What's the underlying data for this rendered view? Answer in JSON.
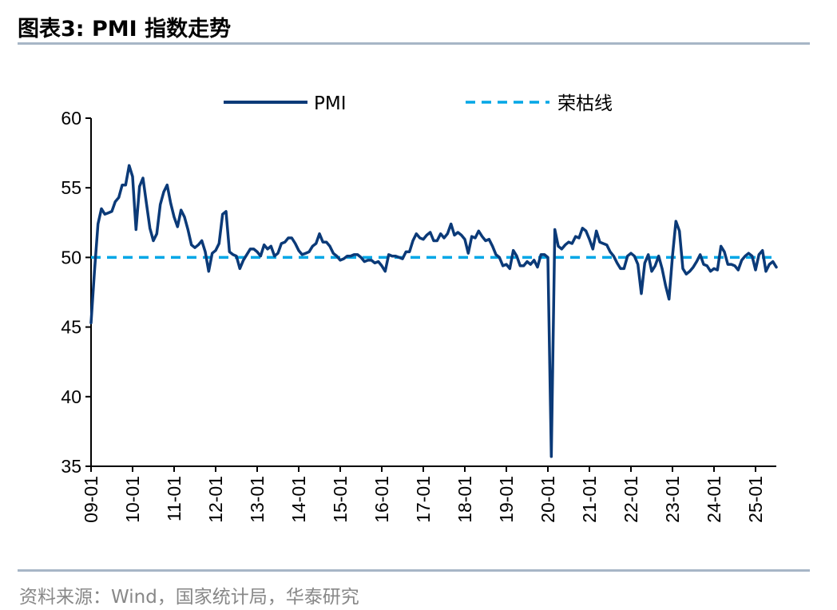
{
  "figure": {
    "title": "图表3:  PMI 指数走势",
    "source": "资料来源：Wind，国家统计局，华泰研究"
  },
  "chart_data": {
    "type": "line",
    "title": "",
    "xlabel": "",
    "ylabel": "",
    "ylim": [
      35,
      60
    ],
    "yticks": [
      35,
      40,
      45,
      50,
      55,
      60
    ],
    "x_start": "2009-01",
    "x_end": "2025-07",
    "xtick_labels": [
      "09-01",
      "10-01",
      "11-01",
      "12-01",
      "13-01",
      "14-01",
      "15-01",
      "16-01",
      "17-01",
      "18-01",
      "19-01",
      "20-01",
      "21-01",
      "22-01",
      "23-01",
      "24-01",
      "25-01"
    ],
    "legend_position": "top",
    "grid": false,
    "series": [
      {
        "name": "PMI",
        "color": "#0b3a78",
        "style": "solid",
        "x": [
          "2009-01",
          "2009-02",
          "2009-03",
          "2009-04",
          "2009-05",
          "2009-06",
          "2009-07",
          "2009-08",
          "2009-09",
          "2009-10",
          "2009-11",
          "2009-12",
          "2010-01",
          "2010-02",
          "2010-03",
          "2010-04",
          "2010-05",
          "2010-06",
          "2010-07",
          "2010-08",
          "2010-09",
          "2010-10",
          "2010-11",
          "2010-12",
          "2011-01",
          "2011-02",
          "2011-03",
          "2011-04",
          "2011-05",
          "2011-06",
          "2011-07",
          "2011-08",
          "2011-09",
          "2011-10",
          "2011-11",
          "2011-12",
          "2012-01",
          "2012-02",
          "2012-03",
          "2012-04",
          "2012-05",
          "2012-06",
          "2012-07",
          "2012-08",
          "2012-09",
          "2012-10",
          "2012-11",
          "2012-12",
          "2013-01",
          "2013-02",
          "2013-03",
          "2013-04",
          "2013-05",
          "2013-06",
          "2013-07",
          "2013-08",
          "2013-09",
          "2013-10",
          "2013-11",
          "2013-12",
          "2014-01",
          "2014-02",
          "2014-03",
          "2014-04",
          "2014-05",
          "2014-06",
          "2014-07",
          "2014-08",
          "2014-09",
          "2014-10",
          "2014-11",
          "2014-12",
          "2015-01",
          "2015-02",
          "2015-03",
          "2015-04",
          "2015-05",
          "2015-06",
          "2015-07",
          "2015-08",
          "2015-09",
          "2015-10",
          "2015-11",
          "2015-12",
          "2016-01",
          "2016-02",
          "2016-03",
          "2016-04",
          "2016-05",
          "2016-06",
          "2016-07",
          "2016-08",
          "2016-09",
          "2016-10",
          "2016-11",
          "2016-12",
          "2017-01",
          "2017-02",
          "2017-03",
          "2017-04",
          "2017-05",
          "2017-06",
          "2017-07",
          "2017-08",
          "2017-09",
          "2017-10",
          "2017-11",
          "2017-12",
          "2018-01",
          "2018-02",
          "2018-03",
          "2018-04",
          "2018-05",
          "2018-06",
          "2018-07",
          "2018-08",
          "2018-09",
          "2018-10",
          "2018-11",
          "2018-12",
          "2019-01",
          "2019-02",
          "2019-03",
          "2019-04",
          "2019-05",
          "2019-06",
          "2019-07",
          "2019-08",
          "2019-09",
          "2019-10",
          "2019-11",
          "2019-12",
          "2020-01",
          "2020-02",
          "2020-03",
          "2020-04",
          "2020-05",
          "2020-06",
          "2020-07",
          "2020-08",
          "2020-09",
          "2020-10",
          "2020-11",
          "2020-12",
          "2021-01",
          "2021-02",
          "2021-03",
          "2021-04",
          "2021-05",
          "2021-06",
          "2021-07",
          "2021-08",
          "2021-09",
          "2021-10",
          "2021-11",
          "2021-12",
          "2022-01",
          "2022-02",
          "2022-03",
          "2022-04",
          "2022-05",
          "2022-06",
          "2022-07",
          "2022-08",
          "2022-09",
          "2022-10",
          "2022-11",
          "2022-12",
          "2023-01",
          "2023-02",
          "2023-03",
          "2023-04",
          "2023-05",
          "2023-06",
          "2023-07",
          "2023-08",
          "2023-09",
          "2023-10",
          "2023-11",
          "2023-12",
          "2024-01",
          "2024-02",
          "2024-03",
          "2024-04",
          "2024-05",
          "2024-06",
          "2024-07",
          "2024-08",
          "2024-09",
          "2024-10",
          "2024-11",
          "2024-12",
          "2025-01",
          "2025-02",
          "2025-03",
          "2025-04",
          "2025-05",
          "2025-06",
          "2025-07"
        ],
        "values": [
          45.3,
          49.0,
          52.4,
          53.5,
          53.1,
          53.2,
          53.3,
          54.0,
          54.3,
          55.2,
          55.2,
          56.6,
          55.8,
          52.0,
          55.1,
          55.7,
          53.9,
          52.1,
          51.2,
          51.7,
          53.8,
          54.7,
          55.2,
          53.9,
          52.9,
          52.2,
          53.4,
          52.9,
          52.0,
          50.9,
          50.7,
          50.9,
          51.2,
          50.4,
          49.0,
          50.3,
          50.5,
          51.0,
          53.1,
          53.3,
          50.4,
          50.2,
          50.1,
          49.2,
          49.8,
          50.2,
          50.6,
          50.6,
          50.4,
          50.1,
          50.9,
          50.6,
          50.8,
          50.1,
          50.3,
          51.0,
          51.1,
          51.4,
          51.4,
          51.0,
          50.5,
          50.2,
          50.3,
          50.4,
          50.8,
          51.0,
          51.7,
          51.1,
          51.1,
          50.8,
          50.3,
          50.1,
          49.8,
          49.9,
          50.1,
          50.1,
          50.2,
          50.2,
          50.0,
          49.7,
          49.8,
          49.8,
          49.6,
          49.7,
          49.4,
          49.0,
          50.2,
          50.1,
          50.1,
          50.0,
          49.9,
          50.4,
          50.4,
          51.2,
          51.7,
          51.4,
          51.3,
          51.6,
          51.8,
          51.2,
          51.2,
          51.7,
          51.4,
          51.7,
          52.4,
          51.6,
          51.8,
          51.6,
          51.3,
          50.3,
          51.5,
          51.4,
          51.9,
          51.5,
          51.2,
          51.3,
          50.8,
          50.2,
          50.0,
          49.4,
          49.5,
          49.2,
          50.5,
          50.1,
          49.4,
          49.4,
          49.7,
          49.5,
          49.8,
          49.3,
          50.2,
          50.2,
          50.0,
          35.7,
          52.0,
          50.8,
          50.6,
          50.9,
          51.1,
          51.0,
          51.5,
          51.4,
          52.1,
          51.9,
          51.3,
          50.6,
          51.9,
          51.1,
          51.0,
          50.9,
          50.4,
          50.1,
          49.6,
          49.2,
          49.2,
          50.1,
          50.3,
          50.1,
          49.5,
          47.4,
          49.6,
          50.2,
          49.0,
          49.4,
          50.1,
          49.2,
          48.0,
          47.0,
          50.1,
          52.6,
          51.9,
          49.2,
          48.8,
          49.0,
          49.3,
          49.7,
          50.2,
          49.5,
          49.4,
          49.0,
          49.2,
          49.1,
          50.8,
          50.4,
          49.5,
          49.5,
          49.4,
          49.1,
          49.8,
          50.1,
          50.3,
          50.1,
          49.1,
          50.2,
          50.5,
          49.0,
          49.5,
          49.7,
          49.3
        ]
      },
      {
        "name": "荣枯线",
        "color": "#00a6e6",
        "style": "dashed",
        "values": [
          50,
          50
        ]
      }
    ]
  }
}
